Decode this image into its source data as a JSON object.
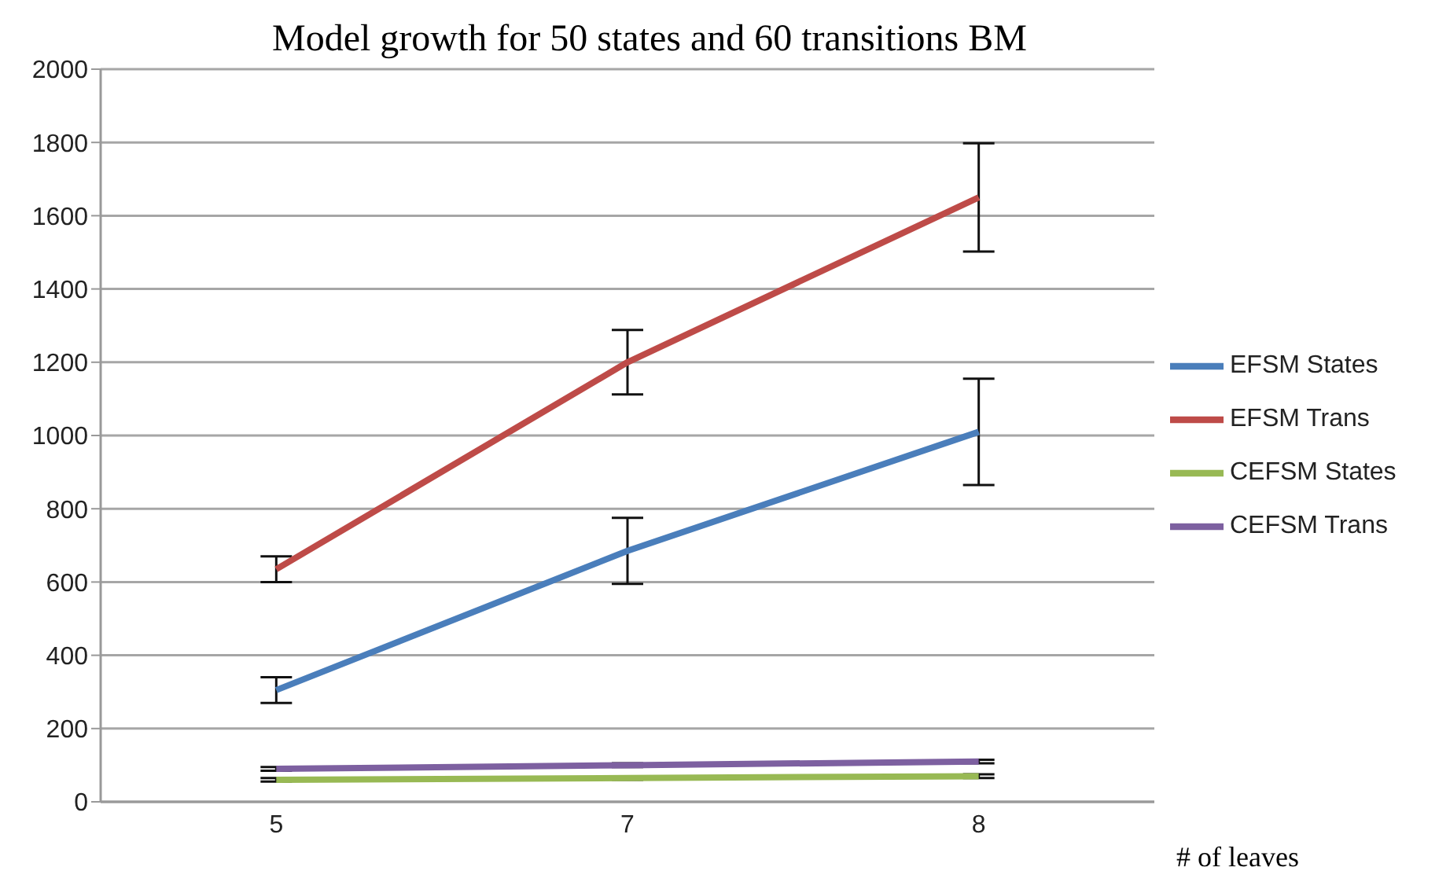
{
  "chart_data": {
    "type": "line",
    "title": "Model growth for 50 states and 60 transitions BM",
    "xlabel": "# of leaves",
    "categories": [
      "5",
      "7",
      "8"
    ],
    "series": [
      {
        "name": "EFSM States",
        "color": "#4a7ebb",
        "values": [
          305,
          685,
          1010
        ],
        "errors": [
          35,
          90,
          145
        ]
      },
      {
        "name": "EFSM Trans",
        "color": "#be4b48",
        "values": [
          635,
          1200,
          1650
        ],
        "errors": [
          35,
          88,
          148
        ]
      },
      {
        "name": "CEFSM States",
        "color": "#98b954",
        "values": [
          60,
          65,
          70
        ],
        "errors": [
          5,
          5,
          5
        ]
      },
      {
        "name": "CEFSM Trans",
        "color": "#7d60a0",
        "values": [
          90,
          100,
          110
        ],
        "errors": [
          5,
          5,
          5
        ]
      }
    ],
    "ylim": [
      0,
      2000
    ],
    "yticks": [
      0,
      200,
      400,
      600,
      800,
      1000,
      1200,
      1400,
      1600,
      1800,
      2000
    ],
    "grid": "y",
    "legend": "right",
    "marker": "none",
    "line_style": "solid"
  }
}
